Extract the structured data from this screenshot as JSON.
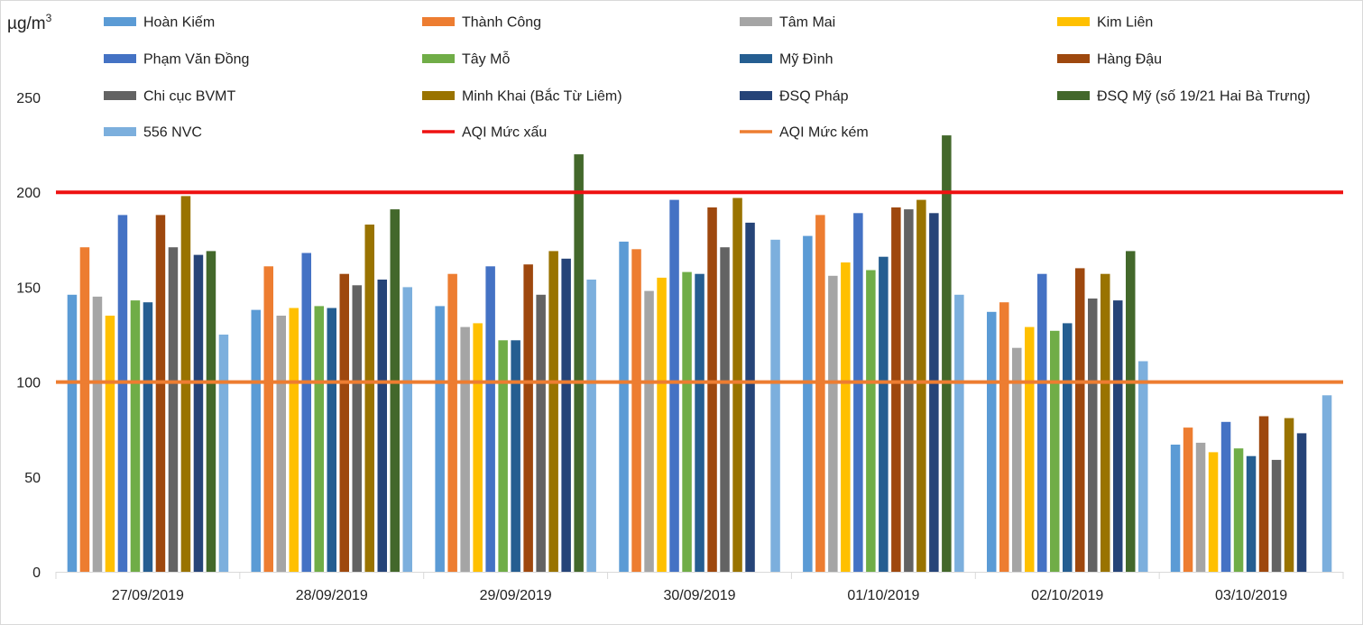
{
  "chart_data": {
    "type": "bar",
    "ylabel": "µg/m",
    "ylabel_sup": "3",
    "ylim": [
      0,
      250
    ],
    "yticks": [
      0,
      50,
      100,
      150,
      200,
      250
    ],
    "grid": false,
    "legend_position": "top",
    "categories": [
      "27/09/2019",
      "28/09/2019",
      "29/09/2019",
      "30/09/2019",
      "01/10/2019",
      "02/10/2019",
      "03/10/2019"
    ],
    "series": [
      {
        "name": "Hoàn Kiếm",
        "color": "#5b9bd5",
        "values": [
          146,
          138,
          140,
          174,
          177,
          137,
          67
        ]
      },
      {
        "name": "Thành Công",
        "color": "#ed7d31",
        "values": [
          171,
          161,
          157,
          170,
          188,
          142,
          76
        ]
      },
      {
        "name": "Tâm Mai",
        "color": "#a5a5a5",
        "values": [
          145,
          135,
          129,
          148,
          156,
          118,
          68
        ]
      },
      {
        "name": "Kim Liên",
        "color": "#ffc000",
        "values": [
          135,
          139,
          131,
          155,
          163,
          129,
          63
        ]
      },
      {
        "name": "Phạm Văn Đồng",
        "color": "#4472c4",
        "values": [
          188,
          168,
          161,
          196,
          189,
          157,
          79
        ]
      },
      {
        "name": "Tây Mỗ",
        "color": "#70ad47",
        "values": [
          143,
          140,
          122,
          158,
          159,
          127,
          65
        ]
      },
      {
        "name": "Mỹ Đình",
        "color": "#255e91",
        "values": [
          142,
          139,
          122,
          157,
          166,
          131,
          61
        ]
      },
      {
        "name": "Hàng Đậu",
        "color": "#9e480e",
        "values": [
          188,
          157,
          162,
          192,
          192,
          160,
          82
        ]
      },
      {
        "name": "Chi cục BVMT",
        "color": "#636363",
        "values": [
          171,
          151,
          146,
          171,
          191,
          144,
          59
        ]
      },
      {
        "name": "Minh Khai (Bắc Từ Liêm)",
        "color": "#997300",
        "values": [
          198,
          183,
          169,
          197,
          196,
          157,
          81
        ]
      },
      {
        "name": "ĐSQ Pháp",
        "color": "#264478",
        "values": [
          167,
          154,
          165,
          184,
          189,
          143,
          73
        ]
      },
      {
        "name": "ĐSQ Mỹ (số 19/21 Hai Bà Trưng)",
        "color": "#43682b",
        "values": [
          169,
          191,
          220,
          null,
          230,
          169,
          null
        ]
      },
      {
        "name": "556 NVC",
        "color": "#7cafdd",
        "values": [
          125,
          150,
          154,
          175,
          146,
          111,
          93
        ]
      }
    ],
    "reference_lines": [
      {
        "name": "AQI Mức xấu",
        "value": 200,
        "color": "#ee1111"
      },
      {
        "name": "AQI Mức kém",
        "value": 100,
        "color": "#ed7d31"
      }
    ]
  }
}
